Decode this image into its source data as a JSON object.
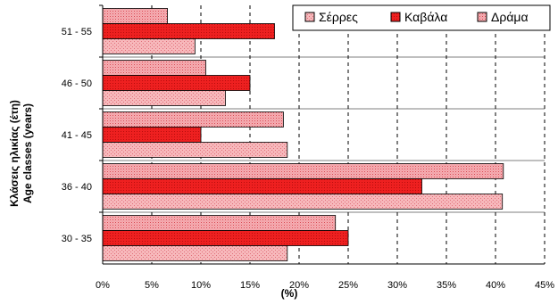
{
  "chart_data": {
    "type": "bar",
    "orientation": "horizontal",
    "categories": [
      "30 - 35",
      "36 - 40",
      "41 - 45",
      "46 - 50",
      "51 - 55"
    ],
    "series": [
      {
        "name": "Σέρρες",
        "values": [
          18.8,
          40.7,
          18.8,
          12.5,
          9.4
        ],
        "color": "#f4a5a8",
        "pattern": "light-grid"
      },
      {
        "name": "Καβάλα",
        "values": [
          25.0,
          32.5,
          10.0,
          15.0,
          17.5
        ],
        "color": "#ee2222",
        "pattern": "solid-dark"
      },
      {
        "name": "Δράμα",
        "values": [
          23.7,
          40.8,
          18.4,
          10.5,
          6.6
        ],
        "color": "#f29da3",
        "pattern": "dotted"
      }
    ],
    "xlabel": "(%)",
    "ylabel_lines": [
      "Κλάσεις ηλικίας (έτη)",
      "Age classes (years)"
    ],
    "xlim": [
      0,
      45
    ],
    "xticks": [
      "0%",
      "5%",
      "10%",
      "15%",
      "20%",
      "25%",
      "30%",
      "35%",
      "40%",
      "45%"
    ],
    "grid": "vertical-dashed",
    "legend": "top-right",
    "legend_order": [
      "Σέρρες",
      "Καβάλα",
      "Δράμα"
    ]
  }
}
